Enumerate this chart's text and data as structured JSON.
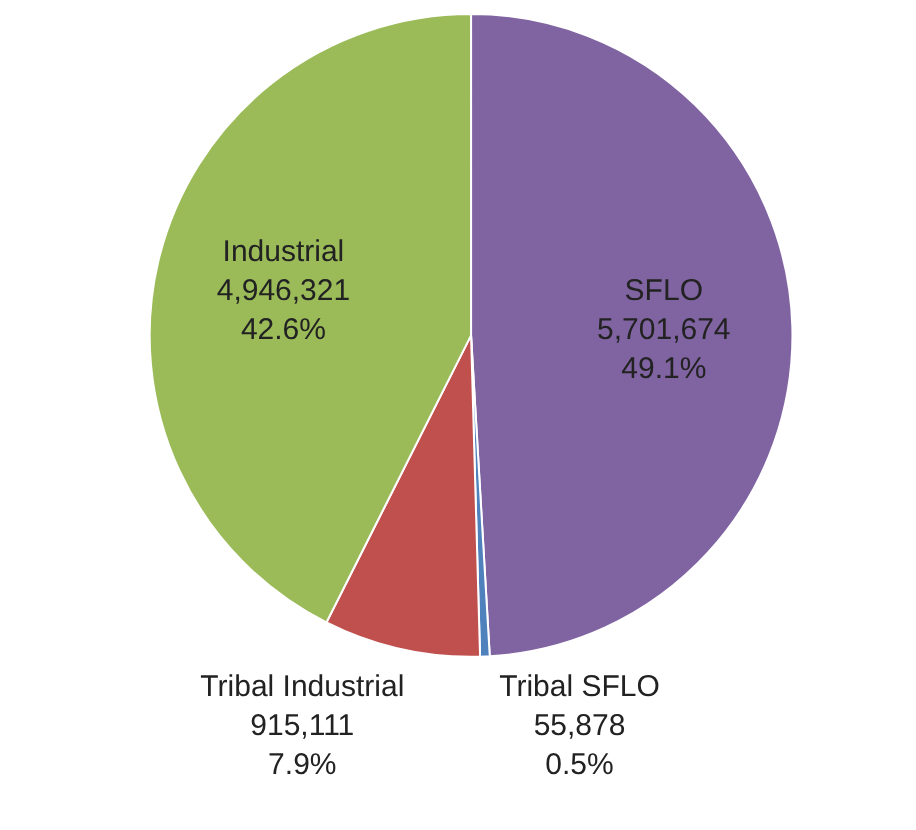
{
  "chart_data": {
    "type": "pie",
    "categories": [
      "SFLO",
      "Tribal SFLO",
      "Tribal Industrial",
      "Industrial"
    ],
    "values": [
      5701674,
      55878,
      915111,
      4946321
    ],
    "colors": [
      "#8064a2",
      "#4f81bd",
      "#c0504d",
      "#9bbb59"
    ],
    "value_labels": [
      "5,701,674\n49.1%",
      "55,878\n0.5%",
      "915,111\n7.9%",
      "4,946,321\n42.6%"
    ],
    "legend": false
  }
}
